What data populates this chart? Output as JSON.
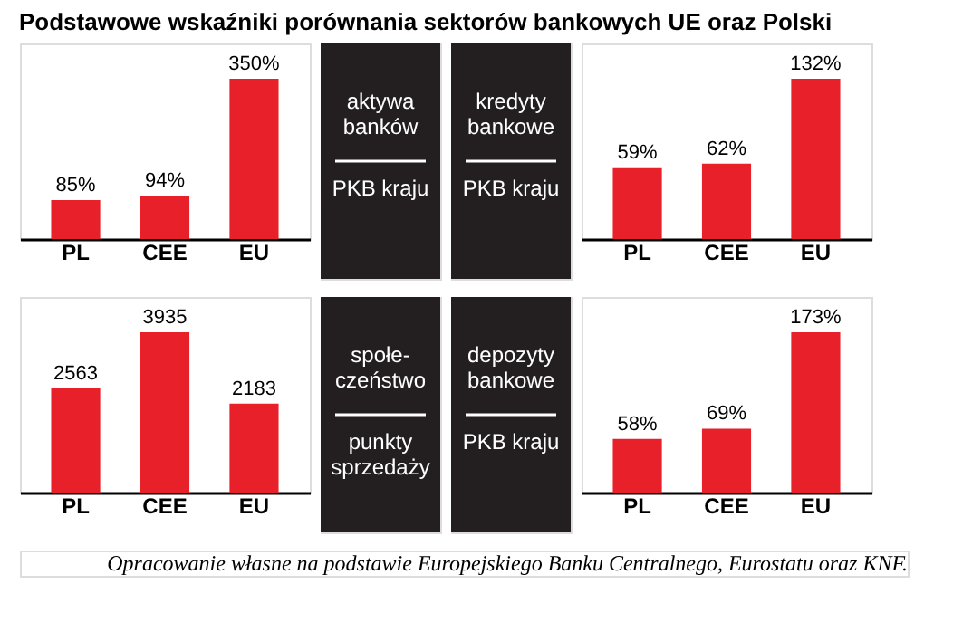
{
  "chart_data": [
    {
      "type": "bar",
      "title": "Podstawowe wskaźniki porównania sektorów bankowych UE oraz Polski",
      "categories": [
        "PL",
        "CEE",
        "EU"
      ],
      "values": [
        85,
        94,
        350
      ],
      "value_labels": [
        "85%",
        "94%",
        "350%"
      ],
      "color": "#e8202a"
    },
    {
      "type": "other",
      "annotations": [
        "aktywa\nbanków",
        "PKB kraju"
      ]
    },
    {
      "type": "other",
      "annotations": [
        "kredyty\nbankowe",
        "PKB kraju"
      ]
    },
    {
      "type": "bar",
      "categories": [
        "PL",
        "CEE",
        "EU"
      ],
      "values": [
        59,
        62,
        132
      ],
      "value_labels": [
        "59%",
        "62%",
        "132%"
      ],
      "color": "#e8202a"
    },
    {
      "type": "bar",
      "categories": [
        "PL",
        "CEE",
        "EU"
      ],
      "values": [
        2563,
        3935,
        2183
      ],
      "data_labels": true,
      "color": "#e8202a"
    },
    {
      "type": "other",
      "annotations": [
        "społe-\nczeństwo",
        "punkty\nsprzedaży"
      ]
    },
    {
      "type": "other",
      "annotations": [
        "depozyty\nbankowe",
        "PKB kraju"
      ]
    },
    {
      "type": "bar",
      "categories": [
        "PL",
        "CEE",
        "EU"
      ],
      "values": [
        58,
        69,
        173
      ],
      "value_labels": [
        "58%",
        "69%",
        "173%"
      ],
      "color": "#e8202a",
      "annotations": [
        "Opracowanie własne na podstawie Europejskiego Banku Centralnego, Eurostatu oraz KNF."
      ]
    }
  ]
}
